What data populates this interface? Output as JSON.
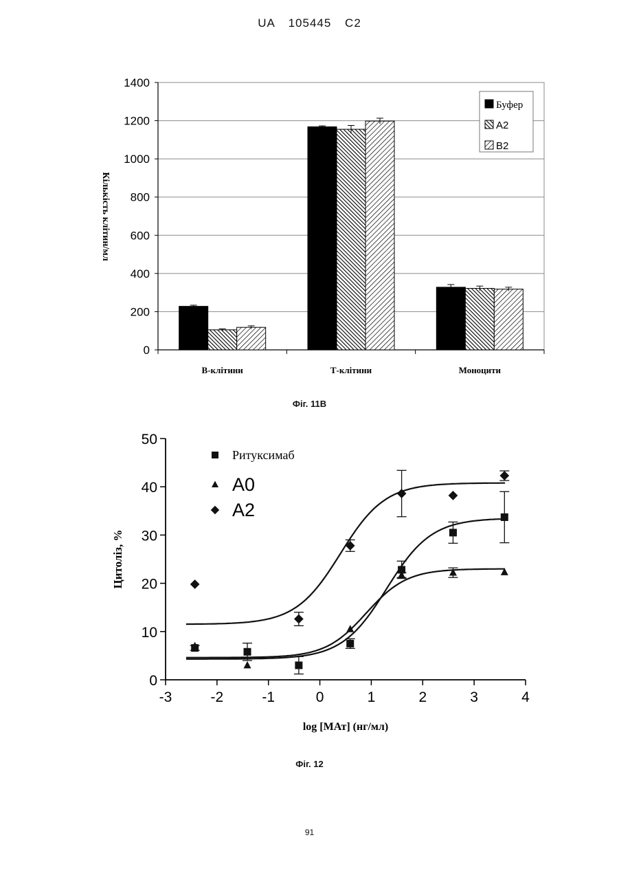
{
  "header": "UA   105445   C2",
  "page_number": "91",
  "chart_data": [
    {
      "type": "bar",
      "caption": "Фіг. 11В",
      "ylabel": "Кількість клітин/мл",
      "xlabel": "",
      "ylim": [
        0,
        1400
      ],
      "yticks": [
        0,
        200,
        400,
        600,
        800,
        1000,
        1200,
        1400
      ],
      "categories": [
        "В-клітини",
        "Т-клітини",
        "Моноцити"
      ],
      "grid": true,
      "legend_position": "top-right",
      "series": [
        {
          "name": "Буфер",
          "pattern": "solid-black",
          "values": [
            228,
            1168,
            328
          ],
          "errors": [
            6,
            5,
            14
          ]
        },
        {
          "name": "А2",
          "pattern": "dense-hatch",
          "values": [
            105,
            1155,
            322
          ],
          "errors": [
            5,
            20,
            12
          ]
        },
        {
          "name": "В2",
          "pattern": "sparse-hatch",
          "values": [
            118,
            1198,
            318
          ],
          "errors": [
            8,
            15,
            10
          ]
        }
      ]
    },
    {
      "type": "scatter",
      "caption": "Фіг. 12",
      "ylabel": "Цитоліз, %",
      "xlabel": "log [МАт] (нг/мл)",
      "xlim": [
        -3,
        4
      ],
      "ylim": [
        0,
        50
      ],
      "xticks": [
        -3,
        -2,
        -1,
        0,
        1,
        2,
        3,
        4
      ],
      "yticks": [
        0,
        10,
        20,
        30,
        40,
        50
      ],
      "legend_position": "top-left",
      "series": [
        {
          "name": "Ритуксимаб",
          "marker": "square",
          "points": [
            [
              -2.43,
              6.6
            ],
            [
              -1.41,
              5.8
            ],
            [
              -0.41,
              3.0
            ],
            [
              0.59,
              7.5
            ],
            [
              1.59,
              22.8
            ],
            [
              2.59,
              30.5
            ],
            [
              3.59,
              33.7
            ]
          ],
          "errors": [
            0.5,
            1.8,
            1.8,
            1.0,
            1.8,
            2.2,
            5.3
          ],
          "fit": {
            "bottom": 4.3,
            "top": 33.5,
            "logEC50": 1.3,
            "hill": 1.0
          }
        },
        {
          "name": "А0",
          "marker": "triangle",
          "points": [
            [
              -2.43,
              7.0
            ],
            [
              -1.41,
              3.0
            ],
            [
              0.59,
              10.5
            ],
            [
              1.59,
              21.7
            ],
            [
              2.59,
              22.2
            ],
            [
              3.59,
              22.3
            ]
          ],
          "errors": [
            0.3,
            0.3,
            0.3,
            0.5,
            1.0,
            0.3
          ],
          "fit": {
            "bottom": 4.6,
            "top": 23.0,
            "logEC50": 0.9,
            "hill": 1.1
          }
        },
        {
          "name": "А2",
          "marker": "diamond",
          "points": [
            [
              -2.43,
              19.8
            ],
            [
              -0.41,
              12.6
            ],
            [
              0.59,
              27.8
            ],
            [
              1.59,
              38.6
            ],
            [
              2.59,
              38.2
            ],
            [
              3.59,
              42.3
            ]
          ],
          "errors": [
            0.3,
            1.4,
            1.2,
            4.8,
            0.3,
            1.0
          ],
          "fit": {
            "bottom": 11.5,
            "top": 40.8,
            "logEC50": 0.4,
            "hill": 1.0
          }
        }
      ]
    }
  ]
}
